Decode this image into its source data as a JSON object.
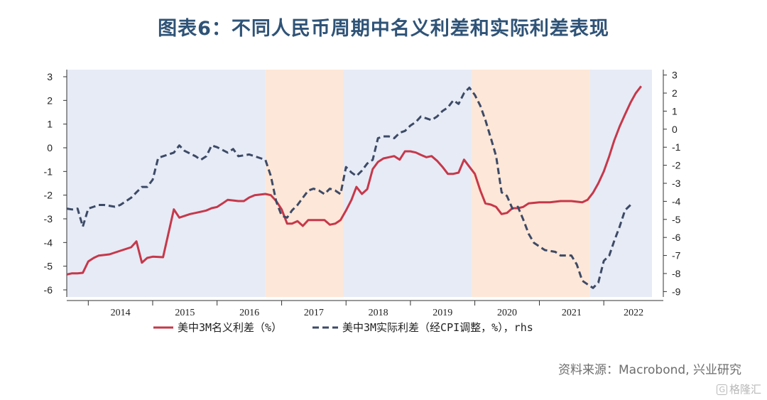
{
  "title": "图表6：不同人民币周期中名义利差和实际利差表现",
  "source": "资料来源：Macrobond, 兴业研究",
  "watermark": "格隆汇",
  "watermark_logo": "G",
  "colors": {
    "nominal": "#c6384a",
    "real": "#3d4a66",
    "band_blue": "#e6ebf6",
    "band_orange": "#fde7d8",
    "title": "#2f5377"
  },
  "chart_data": {
    "type": "line",
    "x_axis": {
      "type": "date",
      "range": [
        "2013-09-01",
        "2022-10-01"
      ],
      "tick_labels": [
        "2014",
        "2015",
        "2016",
        "2017",
        "2018",
        "2019",
        "2020",
        "2021",
        "2022"
      ]
    },
    "y_left": {
      "range": [
        -6.3,
        3.3
      ],
      "ticks": [
        3,
        2,
        1,
        0,
        -1,
        -2,
        -3,
        -4,
        -5,
        -6
      ]
    },
    "y_right": {
      "range": [
        -9.3,
        3.3
      ],
      "ticks": [
        3,
        2,
        1,
        0,
        -1,
        -2,
        -3,
        -4,
        -5,
        -6,
        -7,
        -8,
        -9
      ]
    },
    "bands": [
      {
        "from": "2013-09-01",
        "to": "2016-10-01",
        "color": "blue"
      },
      {
        "from": "2016-10-01",
        "to": "2017-12-15",
        "color": "orange"
      },
      {
        "from": "2017-12-15",
        "to": "2019-12-15",
        "color": "blue"
      },
      {
        "from": "2019-12-15",
        "to": "2021-10-15",
        "color": "orange"
      },
      {
        "from": "2021-10-15",
        "to": "2022-10-01",
        "color": "blue"
      }
    ],
    "legend": {
      "position": "bottom"
    },
    "series": [
      {
        "name": "美中3M名义利差（%）",
        "axis": "left",
        "style": "solid",
        "points": [
          [
            "2013-09-01",
            -5.35
          ],
          [
            "2013-10-01",
            -5.3
          ],
          [
            "2013-11-01",
            -5.3
          ],
          [
            "2013-12-01",
            -5.28
          ],
          [
            "2014-01-01",
            -4.8
          ],
          [
            "2014-02-01",
            -4.65
          ],
          [
            "2014-03-01",
            -4.55
          ],
          [
            "2014-05-01",
            -4.5
          ],
          [
            "2014-07-01",
            -4.35
          ],
          [
            "2014-09-01",
            -4.2
          ],
          [
            "2014-10-01",
            -3.95
          ],
          [
            "2014-11-01",
            -4.85
          ],
          [
            "2014-12-01",
            -4.65
          ],
          [
            "2015-01-01",
            -4.6
          ],
          [
            "2015-03-01",
            -4.62
          ],
          [
            "2015-05-01",
            -2.6
          ],
          [
            "2015-06-01",
            -2.95
          ],
          [
            "2015-08-01",
            -2.8
          ],
          [
            "2015-09-01",
            -2.75
          ],
          [
            "2015-11-01",
            -2.65
          ],
          [
            "2015-12-01",
            -2.55
          ],
          [
            "2016-01-01",
            -2.5
          ],
          [
            "2016-02-01",
            -2.35
          ],
          [
            "2016-03-01",
            -2.2
          ],
          [
            "2016-05-01",
            -2.25
          ],
          [
            "2016-06-01",
            -2.25
          ],
          [
            "2016-07-01",
            -2.1
          ],
          [
            "2016-08-01",
            -2.0
          ],
          [
            "2016-10-01",
            -1.95
          ],
          [
            "2016-11-01",
            -2.0
          ],
          [
            "2016-12-01",
            -2.25
          ],
          [
            "2017-01-01",
            -2.6
          ],
          [
            "2017-02-01",
            -3.2
          ],
          [
            "2017-03-01",
            -3.2
          ],
          [
            "2017-04-01",
            -3.1
          ],
          [
            "2017-05-01",
            -3.3
          ],
          [
            "2017-06-01",
            -3.05
          ],
          [
            "2017-07-01",
            -3.05
          ],
          [
            "2017-09-01",
            -3.05
          ],
          [
            "2017-10-01",
            -3.25
          ],
          [
            "2017-11-01",
            -3.2
          ],
          [
            "2017-12-01",
            -3.05
          ],
          [
            "2018-01-01",
            -2.65
          ],
          [
            "2018-02-01",
            -2.2
          ],
          [
            "2018-03-01",
            -1.65
          ],
          [
            "2018-04-01",
            -1.95
          ],
          [
            "2018-05-01",
            -1.75
          ],
          [
            "2018-06-01",
            -0.9
          ],
          [
            "2018-07-01",
            -0.6
          ],
          [
            "2018-08-01",
            -0.45
          ],
          [
            "2018-09-01",
            -0.4
          ],
          [
            "2018-10-01",
            -0.35
          ],
          [
            "2018-11-01",
            -0.5
          ],
          [
            "2018-12-01",
            -0.15
          ],
          [
            "2019-01-01",
            -0.15
          ],
          [
            "2019-02-01",
            -0.2
          ],
          [
            "2019-03-01",
            -0.3
          ],
          [
            "2019-04-01",
            -0.4
          ],
          [
            "2019-05-01",
            -0.35
          ],
          [
            "2019-06-01",
            -0.55
          ],
          [
            "2019-07-01",
            -0.8
          ],
          [
            "2019-08-01",
            -1.1
          ],
          [
            "2019-09-01",
            -1.1
          ],
          [
            "2019-10-01",
            -1.05
          ],
          [
            "2019-11-01",
            -0.5
          ],
          [
            "2019-12-01",
            -0.8
          ],
          [
            "2020-01-01",
            -1.1
          ],
          [
            "2020-02-01",
            -1.8
          ],
          [
            "2020-03-01",
            -2.35
          ],
          [
            "2020-04-01",
            -2.4
          ],
          [
            "2020-05-01",
            -2.5
          ],
          [
            "2020-06-01",
            -2.8
          ],
          [
            "2020-07-01",
            -2.75
          ],
          [
            "2020-08-01",
            -2.55
          ],
          [
            "2020-09-01",
            -2.55
          ],
          [
            "2020-10-01",
            -2.5
          ],
          [
            "2020-11-01",
            -2.35
          ],
          [
            "2021-01-01",
            -2.3
          ],
          [
            "2021-03-01",
            -2.3
          ],
          [
            "2021-05-01",
            -2.25
          ],
          [
            "2021-07-01",
            -2.25
          ],
          [
            "2021-09-01",
            -2.3
          ],
          [
            "2021-10-01",
            -2.2
          ],
          [
            "2021-11-01",
            -1.9
          ],
          [
            "2021-12-01",
            -1.5
          ],
          [
            "2022-01-01",
            -1.0
          ],
          [
            "2022-02-01",
            -0.35
          ],
          [
            "2022-03-01",
            0.3
          ],
          [
            "2022-04-01",
            0.9
          ],
          [
            "2022-05-01",
            1.4
          ],
          [
            "2022-06-01",
            1.9
          ],
          [
            "2022-07-01",
            2.3
          ],
          [
            "2022-08-01",
            2.6
          ]
        ]
      },
      {
        "name": "美中3M实际利差（经CPI调整，%），rhs",
        "axis": "right",
        "style": "dashed",
        "points": [
          [
            "2013-09-01",
            -4.4
          ],
          [
            "2013-10-01",
            -4.45
          ],
          [
            "2013-11-01",
            -4.4
          ],
          [
            "2013-12-01",
            -5.4
          ],
          [
            "2014-01-01",
            -4.4
          ],
          [
            "2014-02-01",
            -4.3
          ],
          [
            "2014-03-01",
            -4.2
          ],
          [
            "2014-04-01",
            -4.2
          ],
          [
            "2014-06-01",
            -4.3
          ],
          [
            "2014-07-01",
            -4.2
          ],
          [
            "2014-08-01",
            -4.0
          ],
          [
            "2014-09-01",
            -3.8
          ],
          [
            "2014-10-01",
            -3.5
          ],
          [
            "2014-11-01",
            -3.2
          ],
          [
            "2014-12-01",
            -3.2
          ],
          [
            "2015-01-01",
            -2.8
          ],
          [
            "2015-02-01",
            -1.6
          ],
          [
            "2015-03-01",
            -1.5
          ],
          [
            "2015-05-01",
            -1.3
          ],
          [
            "2015-06-01",
            -0.9
          ],
          [
            "2015-07-01",
            -1.2
          ],
          [
            "2015-09-01",
            -1.5
          ],
          [
            "2015-10-01",
            -1.7
          ],
          [
            "2015-11-01",
            -1.5
          ],
          [
            "2015-12-01",
            -0.9
          ],
          [
            "2016-01-01",
            -1.0
          ],
          [
            "2016-03-01",
            -1.3
          ],
          [
            "2016-04-01",
            -1.1
          ],
          [
            "2016-05-01",
            -1.5
          ],
          [
            "2016-07-01",
            -1.4
          ],
          [
            "2016-08-01",
            -1.5
          ],
          [
            "2016-10-01",
            -1.7
          ],
          [
            "2016-11-01",
            -2.6
          ],
          [
            "2016-12-01",
            -4.0
          ],
          [
            "2017-01-01",
            -4.8
          ],
          [
            "2017-02-01",
            -4.9
          ],
          [
            "2017-03-01",
            -4.5
          ],
          [
            "2017-04-01",
            -4.2
          ],
          [
            "2017-05-01",
            -3.8
          ],
          [
            "2017-06-01",
            -3.4
          ],
          [
            "2017-07-01",
            -3.3
          ],
          [
            "2017-08-01",
            -3.4
          ],
          [
            "2017-09-01",
            -3.6
          ],
          [
            "2017-10-01",
            -3.3
          ],
          [
            "2017-11-01",
            -3.4
          ],
          [
            "2017-12-01",
            -3.6
          ],
          [
            "2018-01-01",
            -2.1
          ],
          [
            "2018-02-01",
            -2.4
          ],
          [
            "2018-03-01",
            -2.6
          ],
          [
            "2018-04-01",
            -2.3
          ],
          [
            "2018-05-01",
            -1.9
          ],
          [
            "2018-06-01",
            -1.7
          ],
          [
            "2018-07-01",
            -0.5
          ],
          [
            "2018-08-01",
            -0.4
          ],
          [
            "2018-09-01",
            -0.4
          ],
          [
            "2018-10-01",
            -0.5
          ],
          [
            "2018-11-01",
            -0.2
          ],
          [
            "2018-12-01",
            -0.1
          ],
          [
            "2019-01-01",
            0.2
          ],
          [
            "2019-02-01",
            0.4
          ],
          [
            "2019-03-01",
            0.7
          ],
          [
            "2019-04-01",
            0.6
          ],
          [
            "2019-05-01",
            0.5
          ],
          [
            "2019-06-01",
            0.7
          ],
          [
            "2019-07-01",
            1.0
          ],
          [
            "2019-08-01",
            1.2
          ],
          [
            "2019-09-01",
            1.6
          ],
          [
            "2019-10-01",
            1.4
          ],
          [
            "2019-11-01",
            2.0
          ],
          [
            "2019-12-01",
            2.3
          ],
          [
            "2020-01-01",
            1.9
          ],
          [
            "2020-02-01",
            1.3
          ],
          [
            "2020-03-01",
            0.5
          ],
          [
            "2020-04-01",
            -0.5
          ],
          [
            "2020-05-01",
            -1.5
          ],
          [
            "2020-06-01",
            -3.5
          ],
          [
            "2020-07-01",
            -3.7
          ],
          [
            "2020-08-01",
            -4.4
          ],
          [
            "2020-09-01",
            -4.3
          ],
          [
            "2020-10-01",
            -5.0
          ],
          [
            "2020-11-01",
            -5.8
          ],
          [
            "2020-12-01",
            -6.3
          ],
          [
            "2021-01-01",
            -6.5
          ],
          [
            "2021-02-01",
            -6.7
          ],
          [
            "2021-04-01",
            -6.8
          ],
          [
            "2021-05-01",
            -7.0
          ],
          [
            "2021-06-01",
            -7.0
          ],
          [
            "2021-07-01",
            -7.0
          ],
          [
            "2021-08-01",
            -7.5
          ],
          [
            "2021-09-01",
            -8.4
          ],
          [
            "2021-10-01",
            -8.6
          ],
          [
            "2021-11-01",
            -8.8
          ],
          [
            "2021-12-01",
            -8.5
          ],
          [
            "2022-01-01",
            -7.3
          ],
          [
            "2022-02-01",
            -7.0
          ],
          [
            "2022-03-01",
            -6.2
          ],
          [
            "2022-04-01",
            -5.4
          ],
          [
            "2022-05-01",
            -4.5
          ],
          [
            "2022-06-01",
            -4.2
          ]
        ]
      }
    ]
  }
}
